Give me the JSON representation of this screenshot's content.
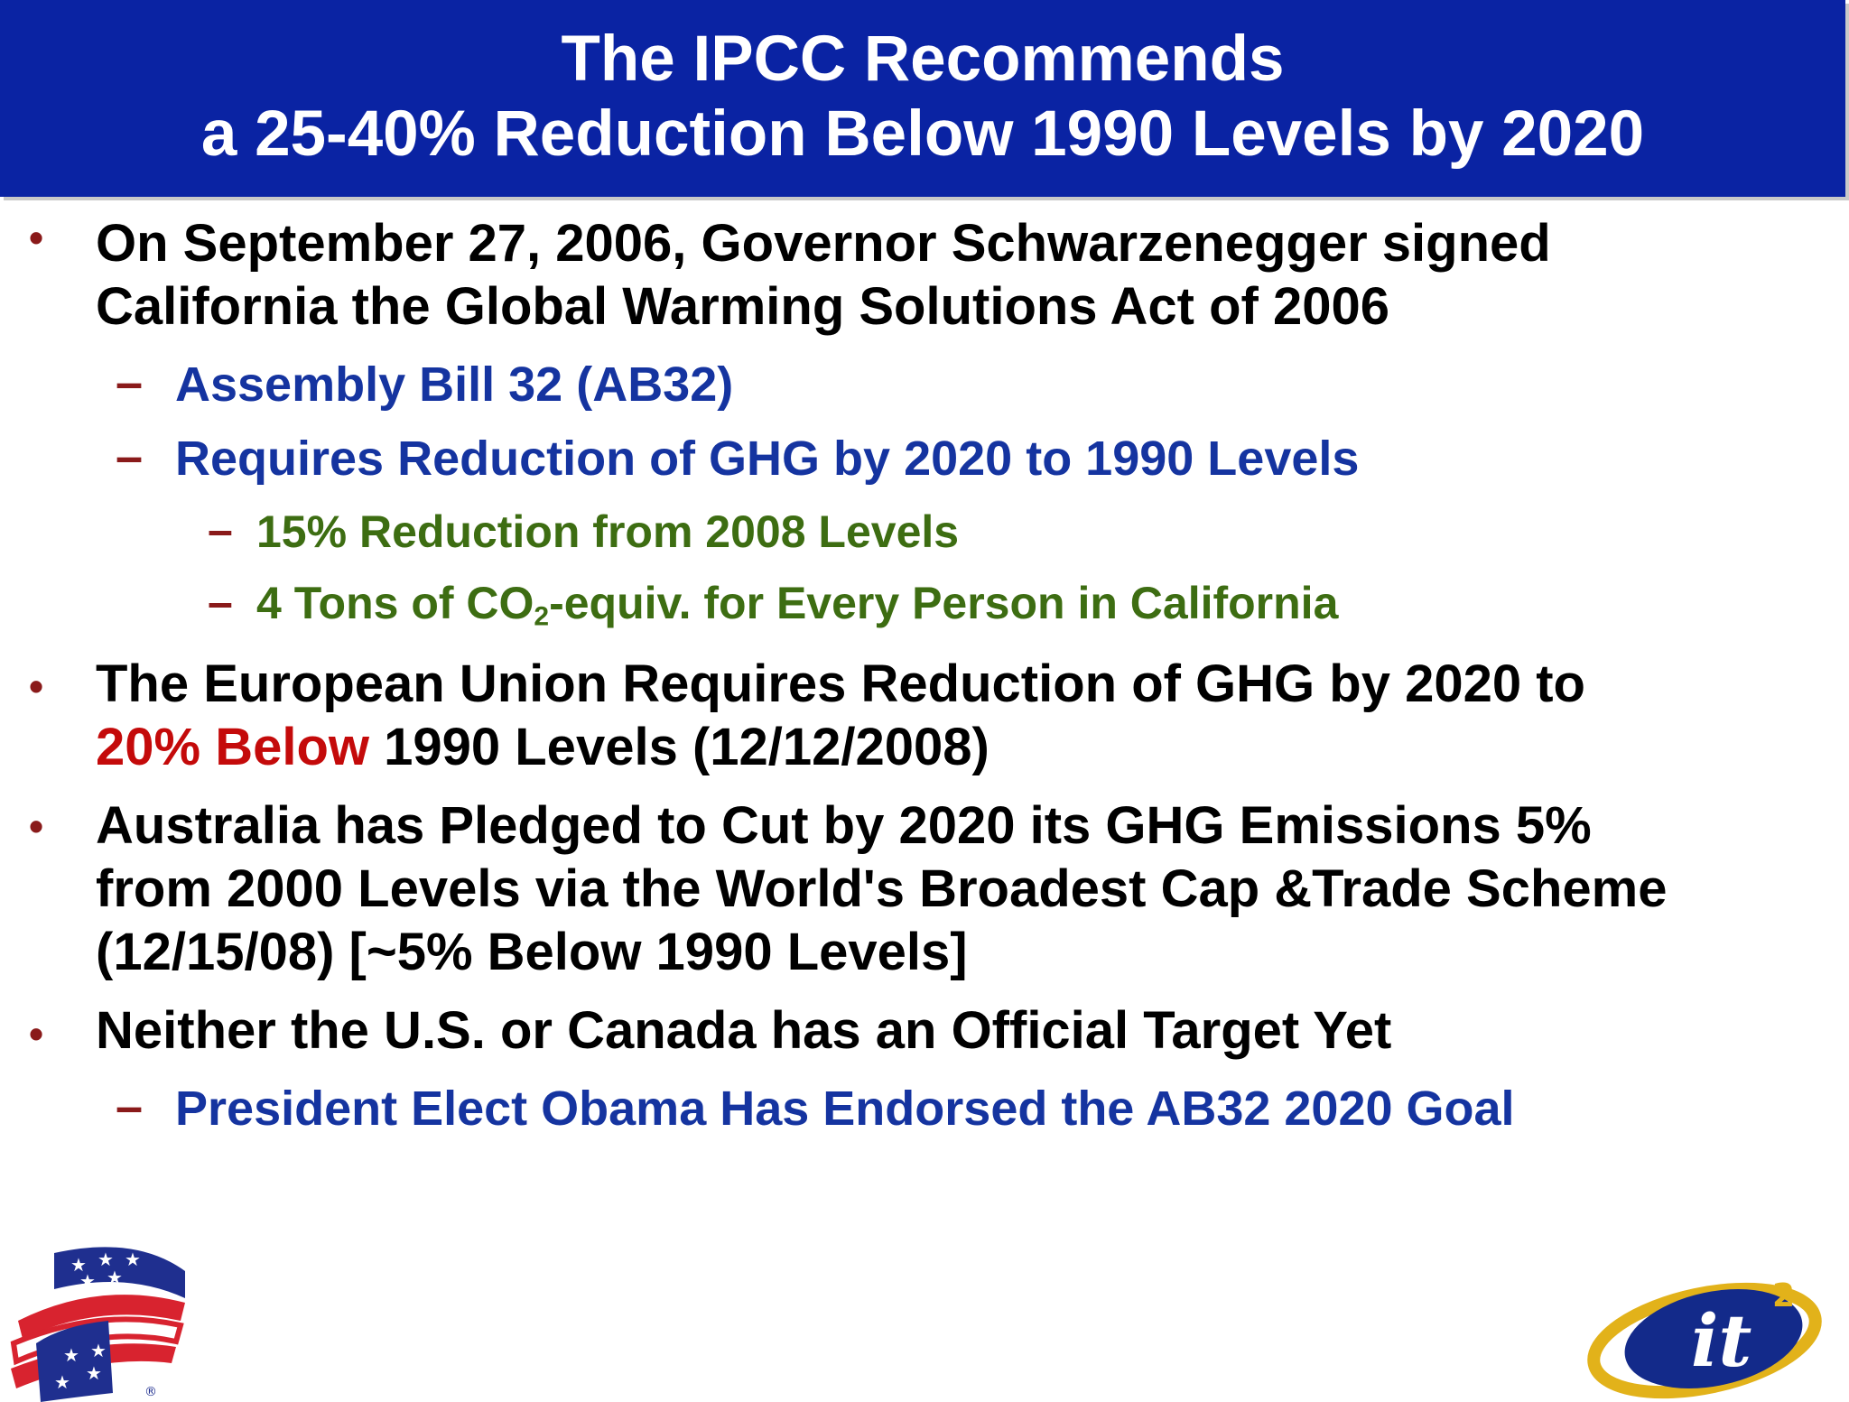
{
  "title": {
    "line1": "The IPCC Recommends",
    "line2": "a 25-40% Reduction Below 1990 Levels by 2020"
  },
  "bullets": [
    {
      "line1": "On September 27, 2006, Governor Schwarzenegger signed",
      "line2": "California the Global Warming Solutions Act of 2006",
      "subs": [
        "Assembly Bill 32 (AB32)",
        "Requires Reduction of GHG by 2020 to 1990 Levels"
      ],
      "subsubs": [
        "15% Reduction from 2008 Levels",
        {
          "pre": "4 Tons of CO",
          "sub": "2",
          "post": "-equiv. for Every Person in California"
        }
      ]
    },
    {
      "line1": "The European Union Requires Reduction of GHG by 2020 to",
      "line2_red": "20% Below",
      "line2_rest": " 1990 Levels (12/12/2008)"
    },
    {
      "line1": "Australia has Pledged to Cut by 2020 its GHG Emissions 5%",
      "line2": "from 2000 Levels via the World's Broadest Cap &Trade Scheme",
      "line3": "(12/15/08)  [~5% Below 1990 Levels]"
    },
    {
      "line1": "Neither the U.S. or Canada has an Official Target Yet",
      "subs": [
        "President Elect Obama Has Endorsed the AB32 2020 Goal"
      ]
    }
  ],
  "markers": {
    "bullet": "•",
    "dash": "–"
  },
  "logos": {
    "left": "flag-ribbon-logo",
    "right": "it2-logo",
    "right_text": "it",
    "right_superscript": "2"
  },
  "colors": {
    "title_bar": "#0a23a3",
    "level2_text": "#1534a0",
    "level3_text": "#3d6d12",
    "marker": "#8a1a1a",
    "highlight_red": "#c40a0a"
  }
}
